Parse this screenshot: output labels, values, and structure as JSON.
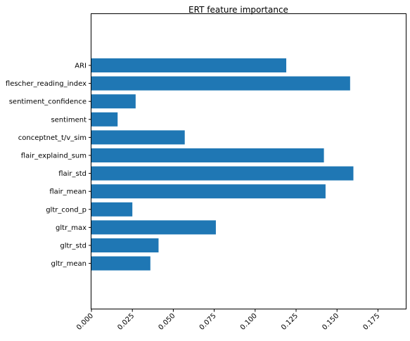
{
  "chart_data": {
    "type": "bar",
    "orientation": "horizontal",
    "title": "ERT feature importance",
    "xlabel": "",
    "ylabel": "",
    "categories": [
      "ARI",
      "flescher_reading_index",
      "sentiment_confidence",
      "sentiment",
      "conceptnet_t/v_sim",
      "flair_explaind_sum",
      "flair_std",
      "flair_mean",
      "gltr_cond_p",
      "gltr_max",
      "gltr_std",
      "gltr_mean"
    ],
    "values": [
      0.119,
      0.158,
      0.027,
      0.016,
      0.057,
      0.142,
      0.16,
      0.143,
      0.025,
      0.076,
      0.041,
      0.036
    ],
    "xlim": [
      0,
      0.192
    ],
    "xticks": [
      "0.000",
      "0.025",
      "0.050",
      "0.075",
      "0.100",
      "0.125",
      "0.150",
      "0.175"
    ],
    "grid": false,
    "legend": "none",
    "bar_color": "#1f77b4"
  }
}
